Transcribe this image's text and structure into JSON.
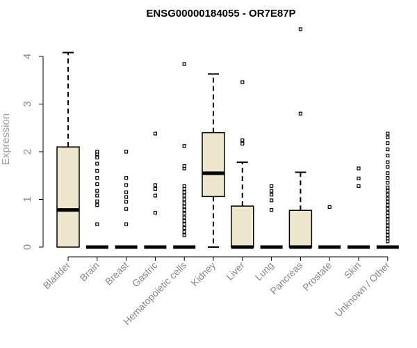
{
  "chart_data": {
    "type": "box",
    "title": "ENSG00000184055 - OR7E87P",
    "ylabel": "Expression",
    "xlabel": "",
    "ylim": [
      0,
      4.6
    ],
    "yticks": [
      "0",
      "1",
      "2",
      "3",
      "4"
    ],
    "grid": false,
    "colors": {
      "box_fill": "#ede7cf",
      "stroke": "#000000",
      "axis_text": "#888888"
    },
    "categories": [
      "Bladder",
      "Brain",
      "Breast",
      "Gastric",
      "Hematopoietic cells",
      "Kidney",
      "Liver",
      "Lung",
      "Pancreas",
      "Prostate",
      "Skin",
      "Unknown / Other"
    ],
    "boxes": [
      {
        "category": "Bladder",
        "q1": 0,
        "median": 0.78,
        "q3": 2.1,
        "whisker_low": 0,
        "whisker_high": 4.08,
        "outliers": []
      },
      {
        "category": "Brain",
        "q1": 0,
        "median": 0,
        "q3": 0,
        "whisker_low": 0,
        "whisker_high": 0,
        "outliers": [
          0.48,
          0.88,
          0.96,
          1.08,
          1.18,
          1.32,
          1.45,
          1.6,
          1.75,
          1.88,
          1.95,
          2.0
        ]
      },
      {
        "category": "Breast",
        "q1": 0,
        "median": 0,
        "q3": 0,
        "whisker_low": 0,
        "whisker_high": 0,
        "outliers": [
          0.48,
          0.8,
          0.95,
          1.05,
          1.15,
          1.3,
          1.45,
          2.0
        ]
      },
      {
        "category": "Gastric",
        "q1": 0,
        "median": 0,
        "q3": 0,
        "whisker_low": 0,
        "whisker_high": 0,
        "outliers": [
          0.72,
          1.08,
          1.22,
          1.3,
          2.38
        ]
      },
      {
        "category": "Hematopoietic cells",
        "q1": 0,
        "median": 0,
        "q3": 0,
        "whisker_low": 0,
        "whisker_high": 0,
        "outliers": [
          0.25,
          0.32,
          0.4,
          0.48,
          0.55,
          0.62,
          0.7,
          0.78,
          0.85,
          0.92,
          1.0,
          1.08,
          1.15,
          1.22,
          1.28,
          1.65,
          1.7,
          2.12,
          3.84
        ]
      },
      {
        "category": "Kidney",
        "q1": 1.06,
        "median": 1.55,
        "q3": 2.4,
        "whisker_low": 0,
        "whisker_high": 3.63,
        "outliers": []
      },
      {
        "category": "Liver",
        "q1": 0,
        "median": 0,
        "q3": 0.86,
        "whisker_low": 0,
        "whisker_high": 1.78,
        "outliers": [
          2.17,
          2.24,
          3.46
        ]
      },
      {
        "category": "Lung",
        "q1": 0,
        "median": 0,
        "q3": 0,
        "whisker_low": 0,
        "whisker_high": 0,
        "outliers": [
          0.78,
          0.98,
          1.1,
          1.18,
          1.28
        ]
      },
      {
        "category": "Pancreas",
        "q1": 0,
        "median": 0,
        "q3": 0.77,
        "whisker_low": 0,
        "whisker_high": 1.57,
        "outliers": [
          2.8,
          4.57
        ]
      },
      {
        "category": "Prostate",
        "q1": 0,
        "median": 0,
        "q3": 0,
        "whisker_low": 0,
        "whisker_high": 0,
        "outliers": [
          0.84
        ]
      },
      {
        "category": "Skin",
        "q1": 0,
        "median": 0,
        "q3": 0,
        "whisker_low": 0,
        "whisker_high": 0,
        "outliers": [
          1.28,
          1.44,
          1.65
        ]
      },
      {
        "category": "Unknown / Other",
        "q1": 0,
        "median": 0,
        "q3": 0,
        "whisker_low": 0,
        "whisker_high": 0,
        "outliers": [
          0.12,
          0.18,
          0.25,
          0.32,
          0.38,
          0.45,
          0.52,
          0.58,
          0.65,
          0.72,
          0.8,
          0.88,
          0.95,
          1.02,
          1.1,
          1.18,
          1.25,
          1.35,
          1.45,
          1.55,
          1.68,
          1.78,
          1.92,
          2.05,
          2.18,
          2.3,
          2.38
        ]
      }
    ]
  }
}
